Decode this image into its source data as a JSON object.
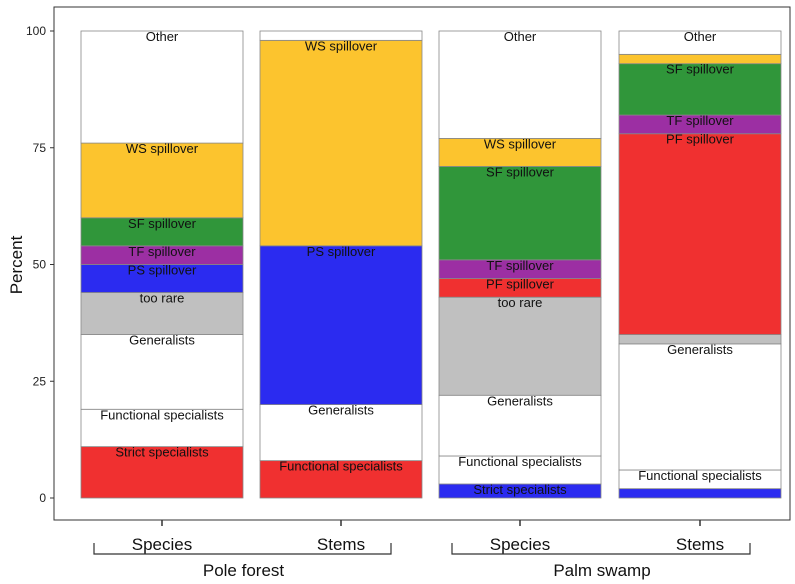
{
  "chart_data": {
    "type": "bar",
    "stacked": true,
    "ylabel": "Percent",
    "ylim": [
      0,
      100
    ],
    "yticks": [
      0,
      25,
      50,
      75,
      100
    ],
    "grid": false,
    "colors": {
      "white": "#ffffff",
      "red": "#f03030",
      "blue": "#2b2bf0",
      "gray": "#c0c0c0",
      "purple": "#9c2fa3",
      "green": "#30963a",
      "yellow": "#fcc42e"
    },
    "groups": [
      {
        "label": "Pole forest",
        "bars": [
          {
            "category": "Species",
            "segments": [
              {
                "label": "Strict specialists",
                "color": "red",
                "from": 0,
                "to": 11
              },
              {
                "label": "Functional specialists",
                "color": "white",
                "from": 11,
                "to": 19
              },
              {
                "label": "Generalists",
                "color": "white",
                "from": 19,
                "to": 35
              },
              {
                "label": "too rare",
                "color": "gray",
                "from": 35,
                "to": 44
              },
              {
                "label": "PS spillover",
                "color": "blue",
                "from": 44,
                "to": 50
              },
              {
                "label": "TF spillover",
                "color": "purple",
                "from": 50,
                "to": 54
              },
              {
                "label": "SF spillover",
                "color": "green",
                "from": 54,
                "to": 60
              },
              {
                "label": "WS spillover",
                "color": "yellow",
                "from": 60,
                "to": 76
              },
              {
                "label": "Other",
                "color": "white",
                "from": 76,
                "to": 100
              }
            ]
          },
          {
            "category": "Stems",
            "segments": [
              {
                "label": "Functional specialists",
                "color": "red",
                "from": 0,
                "to": 8
              },
              {
                "label": "Generalists",
                "color": "white",
                "from": 8,
                "to": 20
              },
              {
                "label": "PS spillover",
                "color": "blue",
                "from": 20,
                "to": 54
              },
              {
                "label": "WS spillover",
                "color": "yellow",
                "from": 54,
                "to": 98
              },
              {
                "label": "",
                "color": "white",
                "from": 98,
                "to": 100
              }
            ]
          }
        ]
      },
      {
        "label": "Palm swamp",
        "bars": [
          {
            "category": "Species",
            "segments": [
              {
                "label": "Strict specialists",
                "color": "blue",
                "from": 0,
                "to": 3
              },
              {
                "label": "Functional specialists",
                "color": "white",
                "from": 3,
                "to": 9
              },
              {
                "label": "Generalists",
                "color": "white",
                "from": 9,
                "to": 22
              },
              {
                "label": "too rare",
                "color": "gray",
                "from": 22,
                "to": 43
              },
              {
                "label": "PF spillover",
                "color": "red",
                "from": 43,
                "to": 47
              },
              {
                "label": "TF spillover",
                "color": "purple",
                "from": 47,
                "to": 51
              },
              {
                "label": "SF spillover",
                "color": "green",
                "from": 51,
                "to": 71
              },
              {
                "label": "WS spillover",
                "color": "yellow",
                "from": 71,
                "to": 77
              },
              {
                "label": "Other",
                "color": "white",
                "from": 77,
                "to": 100
              }
            ]
          },
          {
            "category": "Stems",
            "segments": [
              {
                "label": "",
                "color": "blue",
                "from": 0,
                "to": 2
              },
              {
                "label": "Functional specialists",
                "color": "white",
                "from": 2,
                "to": 6
              },
              {
                "label": "Generalists",
                "color": "white",
                "from": 6,
                "to": 33
              },
              {
                "label": "",
                "color": "gray",
                "from": 33,
                "to": 35
              },
              {
                "label": "PF spillover",
                "color": "red",
                "from": 35,
                "to": 78
              },
              {
                "label": "TF spillover",
                "color": "purple",
                "from": 78,
                "to": 82
              },
              {
                "label": "SF spillover",
                "color": "green",
                "from": 82,
                "to": 93
              },
              {
                "label": "",
                "color": "yellow",
                "from": 93,
                "to": 95
              },
              {
                "label": "Other",
                "color": "white",
                "from": 95,
                "to": 100
              }
            ]
          }
        ]
      }
    ]
  }
}
